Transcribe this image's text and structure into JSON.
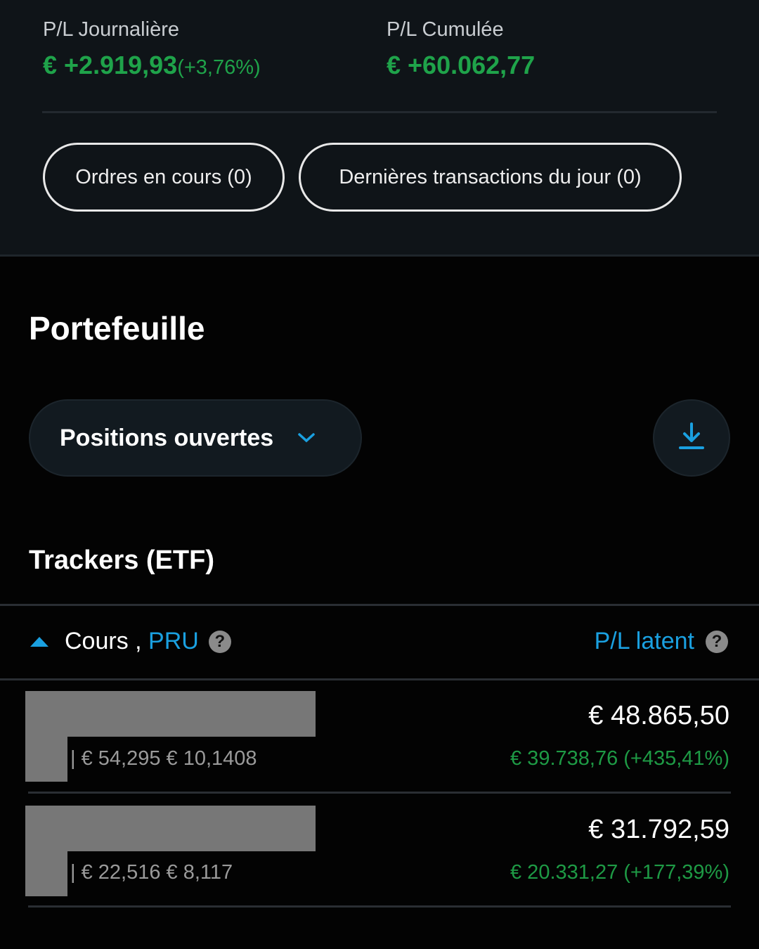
{
  "summary": {
    "daily_label": "P/L Journalière",
    "daily_value": "€ +2.919,93",
    "daily_pct": "(+3,76%)",
    "cumul_label": "P/L Cumulée",
    "cumul_value": "€ +60.062,77"
  },
  "buttons": {
    "orders": "Ordres en cours (0)",
    "transactions": "Dernières transactions du jour (0)"
  },
  "portfolio": {
    "title": "Portefeuille",
    "filter": "Positions ouvertes",
    "section": "Trackers (ETF)"
  },
  "table": {
    "col1": "Cours",
    "sep": " , ",
    "col1b": "PRU",
    "col2": "P/L latent",
    "help": "?"
  },
  "rows": [
    {
      "sub": "| € 54,295 € 10,1408",
      "value": "€ 48.865,50",
      "pl": "€ 39.738,76 (+435,41%)"
    },
    {
      "sub": "| € 22,516 € 8,117",
      "value": "€ 31.792,59",
      "pl": "€ 20.331,27 (+177,39%)"
    }
  ],
  "colors": {
    "green": "#1fa34a",
    "blue": "#1aa0e0"
  },
  "icons": {
    "sort": "triangle-up",
    "filter": "chevron-down",
    "download": "download",
    "help": "question-circle"
  }
}
